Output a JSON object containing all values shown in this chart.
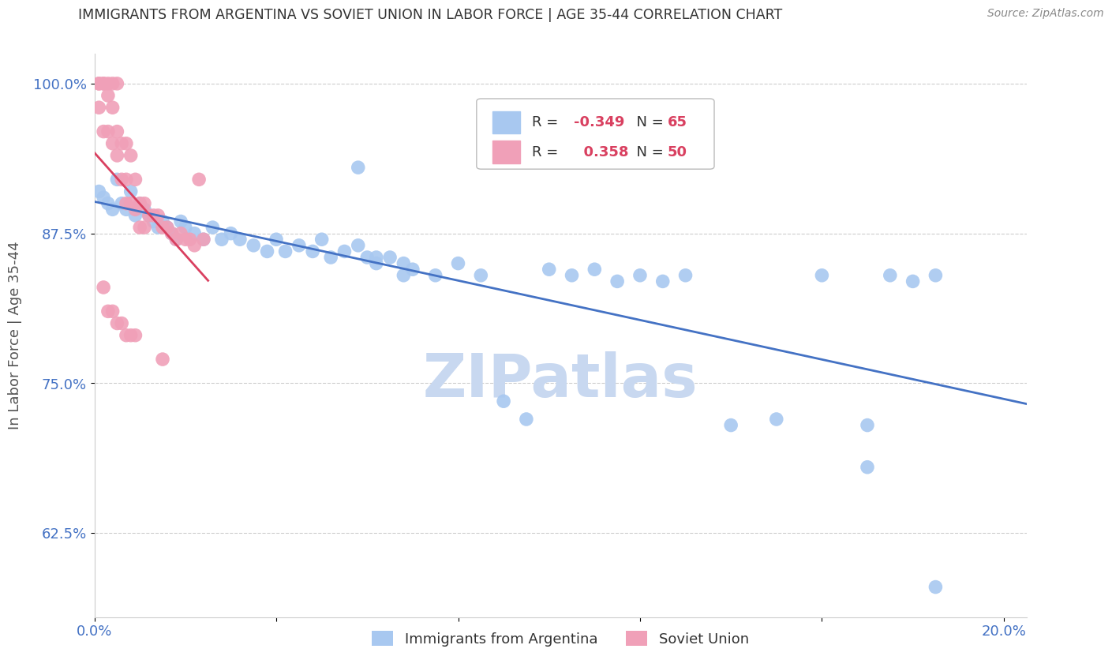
{
  "title": "IMMIGRANTS FROM ARGENTINA VS SOVIET UNION IN LABOR FORCE | AGE 35-44 CORRELATION CHART",
  "source": "Source: ZipAtlas.com",
  "ylabel": "In Labor Force | Age 35-44",
  "xlim": [
    0.0,
    0.205
  ],
  "ylim": [
    0.555,
    1.025
  ],
  "xticks": [
    0.0,
    0.04,
    0.08,
    0.12,
    0.16,
    0.2
  ],
  "xtick_labels": [
    "0.0%",
    "",
    "",
    "",
    "",
    "20.0%"
  ],
  "ytick_labels": [
    "62.5%",
    "75.0%",
    "87.5%",
    "100.0%"
  ],
  "yticks": [
    0.625,
    0.75,
    0.875,
    1.0
  ],
  "argentina_color": "#A8C8F0",
  "soviet_color": "#F0A0B8",
  "argentina_line_color": "#4472C4",
  "soviet_line_color": "#D94060",
  "legend_R_argentina": "-0.349",
  "legend_N_argentina": "65",
  "legend_R_soviet": "0.358",
  "legend_N_soviet": "50",
  "argentina_x": [
    0.001,
    0.002,
    0.003,
    0.004,
    0.005,
    0.006,
    0.007,
    0.008,
    0.009,
    0.01,
    0.011,
    0.012,
    0.013,
    0.014,
    0.015,
    0.016,
    0.017,
    0.018,
    0.019,
    0.02,
    0.022,
    0.024,
    0.026,
    0.028,
    0.03,
    0.032,
    0.035,
    0.038,
    0.04,
    0.042,
    0.045,
    0.048,
    0.05,
    0.052,
    0.055,
    0.058,
    0.06,
    0.062,
    0.065,
    0.068,
    0.07,
    0.075,
    0.08,
    0.085,
    0.09,
    0.095,
    0.1,
    0.105,
    0.11,
    0.115,
    0.12,
    0.125,
    0.13,
    0.14,
    0.15,
    0.16,
    0.17,
    0.175,
    0.18,
    0.185,
    0.058,
    0.062,
    0.068,
    0.17,
    0.185
  ],
  "argentina_y": [
    0.91,
    0.905,
    0.9,
    0.895,
    0.92,
    0.9,
    0.895,
    0.91,
    0.89,
    0.9,
    0.895,
    0.89,
    0.885,
    0.88,
    0.885,
    0.88,
    0.875,
    0.87,
    0.885,
    0.88,
    0.875,
    0.87,
    0.88,
    0.87,
    0.875,
    0.87,
    0.865,
    0.86,
    0.87,
    0.86,
    0.865,
    0.86,
    0.87,
    0.855,
    0.86,
    0.865,
    0.855,
    0.855,
    0.855,
    0.85,
    0.845,
    0.84,
    0.85,
    0.84,
    0.735,
    0.72,
    0.845,
    0.84,
    0.845,
    0.835,
    0.84,
    0.835,
    0.84,
    0.715,
    0.72,
    0.84,
    0.715,
    0.84,
    0.835,
    0.84,
    0.93,
    0.85,
    0.84,
    0.68,
    0.58
  ],
  "soviet_x": [
    0.001,
    0.001,
    0.001,
    0.002,
    0.002,
    0.002,
    0.003,
    0.003,
    0.003,
    0.004,
    0.004,
    0.004,
    0.005,
    0.005,
    0.005,
    0.006,
    0.006,
    0.007,
    0.007,
    0.007,
    0.008,
    0.008,
    0.009,
    0.009,
    0.01,
    0.01,
    0.011,
    0.011,
    0.012,
    0.013,
    0.014,
    0.015,
    0.016,
    0.017,
    0.018,
    0.019,
    0.02,
    0.021,
    0.022,
    0.023,
    0.024,
    0.002,
    0.003,
    0.004,
    0.005,
    0.006,
    0.007,
    0.008,
    0.009,
    0.015
  ],
  "soviet_y": [
    1.0,
    1.0,
    0.98,
    1.0,
    1.0,
    0.96,
    1.0,
    0.99,
    0.96,
    1.0,
    0.98,
    0.95,
    1.0,
    0.96,
    0.94,
    0.95,
    0.92,
    0.95,
    0.92,
    0.9,
    0.94,
    0.9,
    0.92,
    0.895,
    0.9,
    0.88,
    0.9,
    0.88,
    0.89,
    0.89,
    0.89,
    0.88,
    0.88,
    0.875,
    0.87,
    0.875,
    0.87,
    0.87,
    0.865,
    0.92,
    0.87,
    0.83,
    0.81,
    0.81,
    0.8,
    0.8,
    0.79,
    0.79,
    0.79,
    0.77
  ],
  "watermark": "ZIPatlas",
  "watermark_color": "#C8D8F0",
  "background_color": "#FFFFFF",
  "title_color": "#333333",
  "tick_label_color": "#4472C4",
  "grid_color": "#CCCCCC"
}
